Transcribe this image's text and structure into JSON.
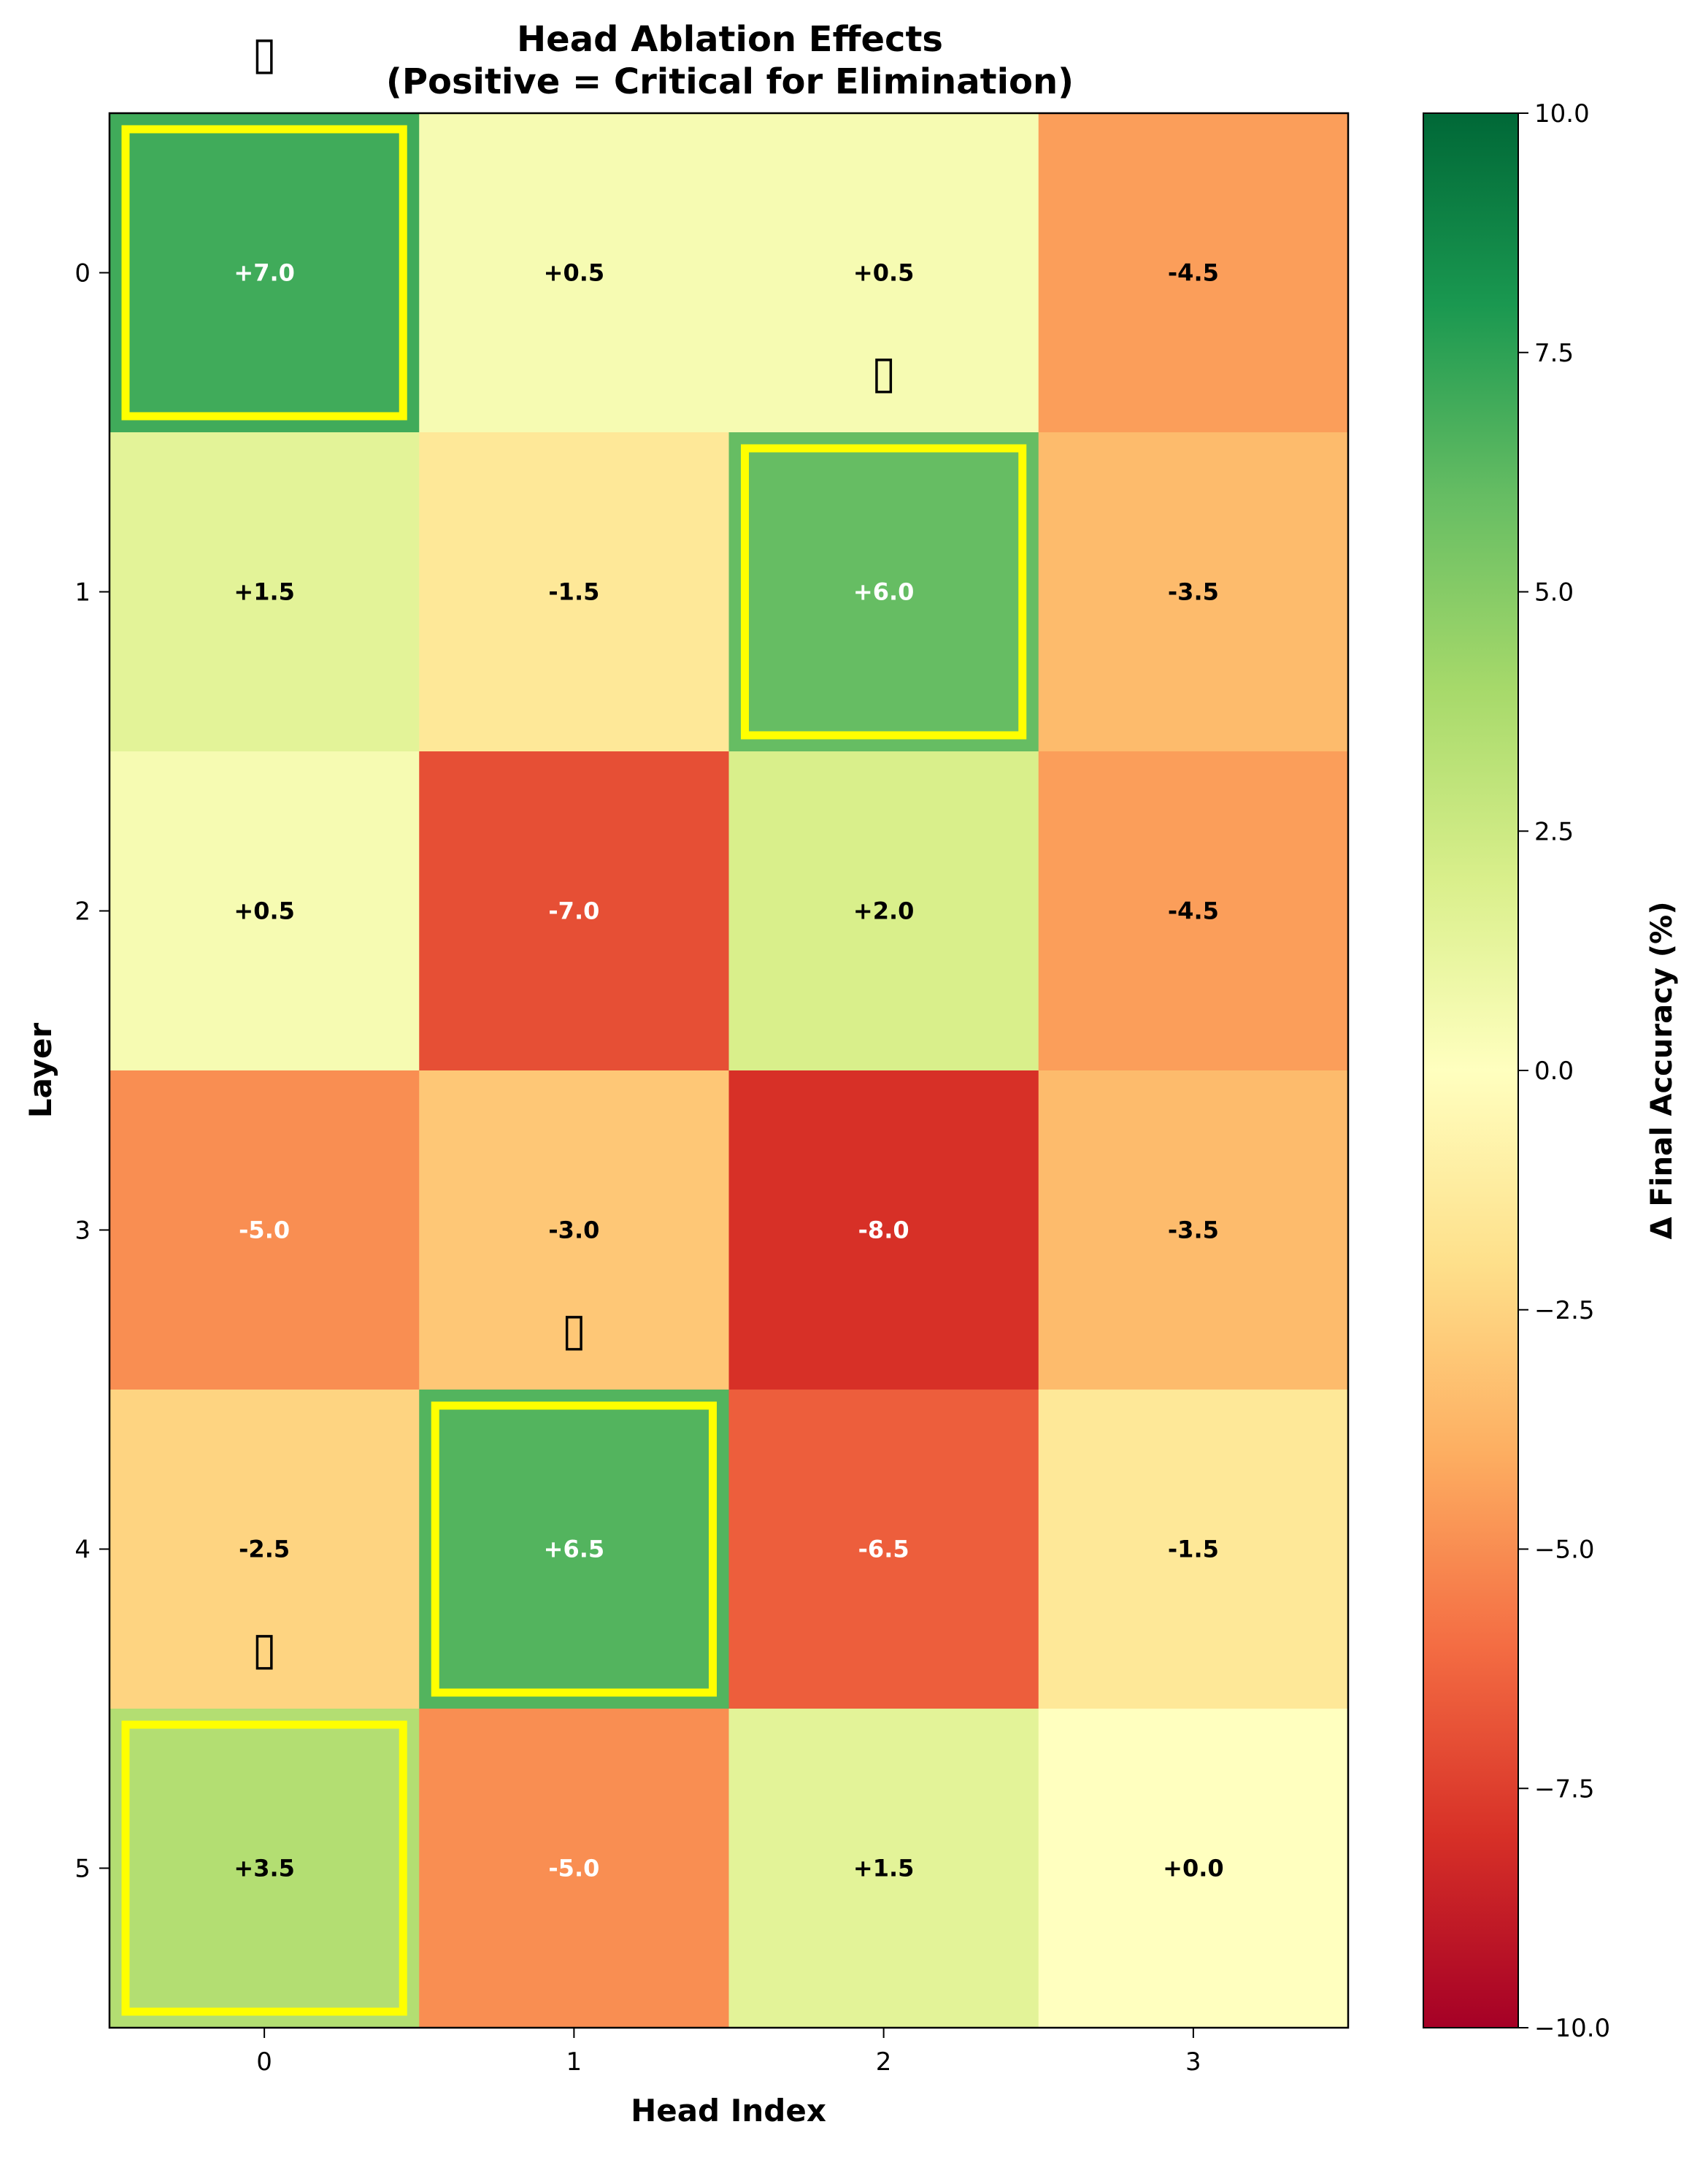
{
  "chart_data": {
    "type": "heatmap",
    "title": "Head Ablation Effects",
    "subtitle": "(Positive = Critical for Elimination)",
    "xlabel": "Head Index",
    "ylabel": "Layer",
    "x_categories": [
      "0",
      "1",
      "2",
      "3"
    ],
    "y_categories": [
      "0",
      "1",
      "2",
      "3",
      "4",
      "5"
    ],
    "values": [
      [
        7.0,
        0.5,
        0.5,
        -4.5
      ],
      [
        1.5,
        -1.5,
        6.0,
        -3.5
      ],
      [
        0.5,
        -7.0,
        2.0,
        -4.5
      ],
      [
        -5.0,
        -3.0,
        -8.0,
        -3.5
      ],
      [
        -2.5,
        6.5,
        -6.5,
        -1.5
      ],
      [
        3.5,
        -5.0,
        1.5,
        0.0
      ]
    ],
    "cell_labels": [
      [
        "+7.0",
        "+0.5",
        "+0.5",
        "-4.5"
      ],
      [
        "+1.5",
        "-1.5",
        "+6.0",
        "-3.5"
      ],
      [
        "+0.5",
        "-7.0",
        "+2.0",
        "-4.5"
      ],
      [
        "-5.0",
        "-3.0",
        "-8.0",
        "-3.5"
      ],
      [
        "-2.5",
        "+6.5",
        "-6.5",
        "-1.5"
      ],
      [
        "+3.5",
        "-5.0",
        "+1.5",
        "+0.0"
      ]
    ],
    "highlighted_cells": [
      {
        "layer": 0,
        "head": 0
      },
      {
        "layer": 1,
        "head": 2
      },
      {
        "layer": 4,
        "head": 1
      },
      {
        "layer": 5,
        "head": 0
      }
    ],
    "marker_cells": [
      {
        "layer": 0,
        "head": 0,
        "position": "above"
      },
      {
        "layer": 0,
        "head": 2,
        "position": "below"
      },
      {
        "layer": 3,
        "head": 1,
        "position": "below"
      },
      {
        "layer": 4,
        "head": 0,
        "position": "below"
      }
    ],
    "marker_glyph": "▯",
    "colormap": "RdYlGn",
    "highlight_color": "#ffff00",
    "colorbar": {
      "label": "Δ Final Accuracy (%)",
      "vmin": -10.0,
      "vmax": 10.0,
      "ticks": [
        10.0,
        7.5,
        5.0,
        2.5,
        0.0,
        -2.5,
        -5.0,
        -7.5,
        -10.0
      ],
      "tick_labels": [
        "10.0",
        "7.5",
        "5.0",
        "2.5",
        "0.0",
        "−2.5",
        "−5.0",
        "−7.5",
        "−10.0"
      ]
    }
  }
}
